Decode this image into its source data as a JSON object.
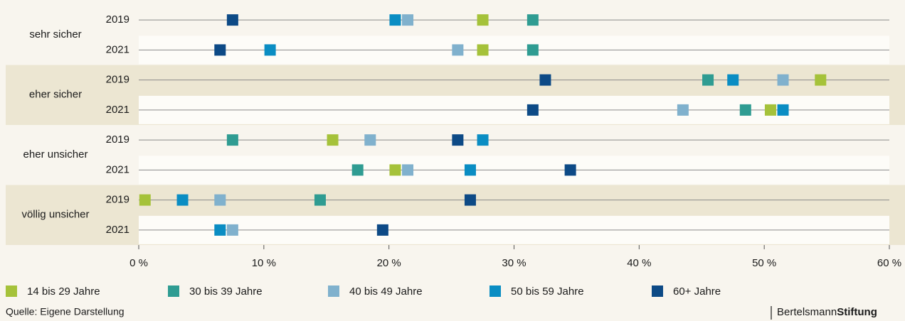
{
  "chart_data": {
    "type": "dot",
    "groups": [
      "sehr sicher",
      "eher sicher",
      "eher unsicher",
      "völlig unsicher"
    ],
    "categories": [
      "2019",
      "2021",
      "2019",
      "2021",
      "2019",
      "2021",
      "2019",
      "2021"
    ],
    "series": [
      {
        "name": "14 bis 29 Jahre",
        "color": "#a5c23a",
        "values": [
          27.5,
          27.5,
          54.5,
          50.5,
          15.5,
          20.5,
          0.5,
          null
        ]
      },
      {
        "name": "30 bis 39 Jahre",
        "color": "#2f9c92",
        "values": [
          31.5,
          31.5,
          45.5,
          48.5,
          7.5,
          17.5,
          14.5,
          null
        ]
      },
      {
        "name": "40 bis 49 Jahre",
        "color": "#80b1cd",
        "values": [
          21.5,
          25.5,
          51.5,
          43.5,
          18.5,
          21.5,
          6.5,
          7.5
        ]
      },
      {
        "name": "50 bis 59 Jahre",
        "color": "#0a8dc3",
        "values": [
          20.5,
          10.5,
          47.5,
          51.5,
          27.5,
          26.5,
          3.5,
          6.5
        ]
      },
      {
        "name": "60+ Jahre",
        "color": "#0d4a86",
        "values": [
          7.5,
          6.5,
          32.5,
          31.5,
          25.5,
          34.5,
          26.5,
          19.5
        ]
      }
    ],
    "xlim": [
      0,
      60
    ],
    "xticks": [
      {
        "value": 0,
        "label": "0 %"
      },
      {
        "value": 10,
        "label": "10 %"
      },
      {
        "value": 20,
        "label": "20 %"
      },
      {
        "value": 30,
        "label": "30 %"
      },
      {
        "value": 40,
        "label": "40 %"
      },
      {
        "value": 50,
        "label": "50 %"
      },
      {
        "value": 60,
        "label": "60 %"
      }
    ],
    "source": "Quelle: Eigene Darstellung",
    "brand": [
      "Bertelsmann",
      "Stiftung"
    ]
  }
}
